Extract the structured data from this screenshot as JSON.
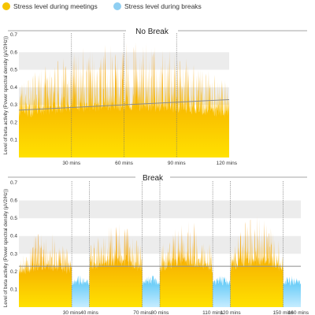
{
  "legend": {
    "items": [
      {
        "label": "Stress level during meetings",
        "color": "#f5c400",
        "icon": "circle-icon"
      },
      {
        "label": "Stress level during breaks",
        "color": "#8fcff2",
        "icon": "circle-icon"
      }
    ]
  },
  "colors": {
    "meeting_top": "#f08a00",
    "meeting_bottom": "#ffe100",
    "break_top": "#4fc3f5",
    "break_bottom": "#b9e6ff",
    "trend": "#8c8c8c",
    "band": "#ececec",
    "divider": "#888888"
  },
  "chart_data": [
    {
      "type": "area",
      "title": "No Break",
      "xlabel": "",
      "ylabel": "Level of beta activity (Power spectral density (μV2/Hz))",
      "yticks": [
        "0.1",
        "0.2",
        "0.3",
        "0.4",
        "0.5",
        "0.6",
        "0.7"
      ],
      "ylim": [
        0,
        0.7
      ],
      "xlim": [
        0,
        120
      ],
      "xticks": [
        {
          "value": 30,
          "label": "30 mins"
        },
        {
          "value": 60,
          "label": "60 mins"
        },
        {
          "value": 90,
          "label": "90 mins"
        },
        {
          "value": 120,
          "label": "120 mins"
        }
      ],
      "segments": [
        {
          "kind": "meeting",
          "from": 0,
          "to": 120,
          "base": 0.32,
          "peak": 0.6
        }
      ],
      "trendline": {
        "from": [
          0,
          0.27
        ],
        "to": [
          120,
          0.33
        ]
      },
      "grid": "alternating bands"
    },
    {
      "type": "area",
      "title": "Break",
      "xlabel": "",
      "ylabel": "Level of beta activity (Power spectral density (μV2/Hz))",
      "yticks": [
        "0.1",
        "0.2",
        "0.3",
        "0.4",
        "0.5",
        "0.6",
        "0.7"
      ],
      "ylim": [
        0,
        0.7
      ],
      "xlim": [
        0,
        160
      ],
      "xticks": [
        {
          "value": 30,
          "label": "30 mins"
        },
        {
          "value": 40,
          "label": "40 mins"
        },
        {
          "value": 70,
          "label": "70 mins"
        },
        {
          "value": 80,
          "label": "80 mins"
        },
        {
          "value": 110,
          "label": "110 mins"
        },
        {
          "value": 120,
          "label": "120 mins"
        },
        {
          "value": 150,
          "label": "150 mins"
        },
        {
          "value": 160,
          "label": "160 mins"
        }
      ],
      "segments": [
        {
          "kind": "meeting",
          "from": 0,
          "to": 30,
          "base": 0.25,
          "peak": 0.4
        },
        {
          "kind": "break",
          "from": 30,
          "to": 40,
          "base": 0.12,
          "peak": 0.18
        },
        {
          "kind": "meeting",
          "from": 40,
          "to": 70,
          "base": 0.28,
          "peak": 0.45
        },
        {
          "kind": "break",
          "from": 70,
          "to": 80,
          "base": 0.12,
          "peak": 0.18
        },
        {
          "kind": "meeting",
          "from": 80,
          "to": 110,
          "base": 0.28,
          "peak": 0.45
        },
        {
          "kind": "break",
          "from": 110,
          "to": 120,
          "base": 0.12,
          "peak": 0.18
        },
        {
          "kind": "meeting",
          "from": 120,
          "to": 150,
          "base": 0.28,
          "peak": 0.47
        },
        {
          "kind": "break",
          "from": 150,
          "to": 160,
          "base": 0.12,
          "peak": 0.18
        }
      ],
      "trendline": {
        "from": [
          0,
          0.23
        ],
        "to": [
          160,
          0.23
        ]
      },
      "grid": "alternating bands"
    }
  ]
}
